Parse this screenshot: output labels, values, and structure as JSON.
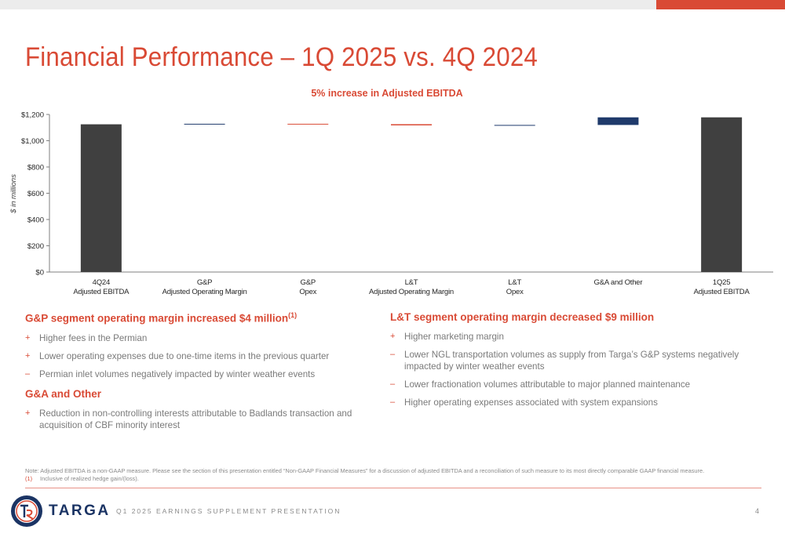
{
  "page": {
    "title": "Financial Performance – 1Q 2025 vs. 4Q 2024",
    "page_number": "4",
    "footer_text": "Q1 2025 EARNINGS SUPPLEMENT PRESENTATION",
    "brand": "TARGA"
  },
  "colors": {
    "accent": "#d94a35",
    "navy": "#1b3464",
    "bar_total": "#404040",
    "bar_increase": "#1f3a6b",
    "bar_decrease": "#d94a35"
  },
  "chart_data": {
    "type": "bar",
    "subtype": "waterfall",
    "title": "5% increase in Adjusted EBITDA",
    "xlabel": "",
    "ylabel": "$ in millions",
    "ylim": [
      0,
      1200
    ],
    "yticks": [
      0,
      200,
      400,
      600,
      800,
      1000,
      1200
    ],
    "ytick_labels": [
      "$0",
      "$200",
      "$400",
      "$600",
      "$800",
      "$1,000",
      "$1,200"
    ],
    "grid": false,
    "categories": [
      [
        "4Q24",
        "Adjusted EBITDA"
      ],
      [
        "G&P",
        "Adjusted Operating Margin"
      ],
      [
        "G&P",
        "Opex"
      ],
      [
        "L&T",
        "Adjusted Operating Margin"
      ],
      [
        "L&T",
        "Opex"
      ],
      [
        "G&A and Other"
      ],
      [
        "1Q25",
        "Adjusted EBITDA"
      ]
    ],
    "bars": [
      {
        "kind": "total",
        "start": 0,
        "end": 1125
      },
      {
        "kind": "increase",
        "start": 1125,
        "end": 1129
      },
      {
        "kind": "decrease",
        "start": 1129,
        "end": 1126
      },
      {
        "kind": "decrease",
        "start": 1126,
        "end": 1117
      },
      {
        "kind": "increase",
        "start": 1117,
        "end": 1120
      },
      {
        "kind": "increase",
        "start": 1120,
        "end": 1178
      },
      {
        "kind": "total",
        "start": 0,
        "end": 1178
      }
    ]
  },
  "left": {
    "heading": "G&P segment operating margin increased $4 million",
    "heading_sup": "(1)",
    "bullets": [
      {
        "mark": "+",
        "text": "Higher fees in the Permian"
      },
      {
        "mark": "+",
        "text": "Lower operating expenses due to one-time items in the previous quarter"
      },
      {
        "mark": "–",
        "text": "Permian inlet volumes negatively impacted by winter weather events"
      }
    ],
    "heading2": "G&A and Other",
    "bullets2": [
      {
        "mark": "+",
        "text": "Reduction in non-controlling interests attributable to Badlands transaction and acquisition of CBF minority interest"
      }
    ]
  },
  "right": {
    "heading": "L&T segment operating margin decreased $9 million",
    "bullets": [
      {
        "mark": "+",
        "text": "Higher marketing margin"
      },
      {
        "mark": "–",
        "text": "Lower NGL transportation volumes as supply from Targa’s G&P systems negatively impacted by winter weather events"
      },
      {
        "mark": "–",
        "text": "Lower fractionation volumes attributable to major planned maintenance"
      },
      {
        "mark": "–",
        "text": "Higher operating expenses associated with system expansions"
      }
    ]
  },
  "notes": {
    "line1": "Note: Adjusted EBITDA is a non-GAAP measure. Please see the section of this presentation entitled “Non-GAAP Financial Measures” for a discussion of adjusted EBITDA and a reconciliation of such measure to its most directly comparable GAAP financial measure.",
    "fn_marker": "(1)",
    "fn_text": "Inclusive of realized hedge gain/(loss)."
  }
}
